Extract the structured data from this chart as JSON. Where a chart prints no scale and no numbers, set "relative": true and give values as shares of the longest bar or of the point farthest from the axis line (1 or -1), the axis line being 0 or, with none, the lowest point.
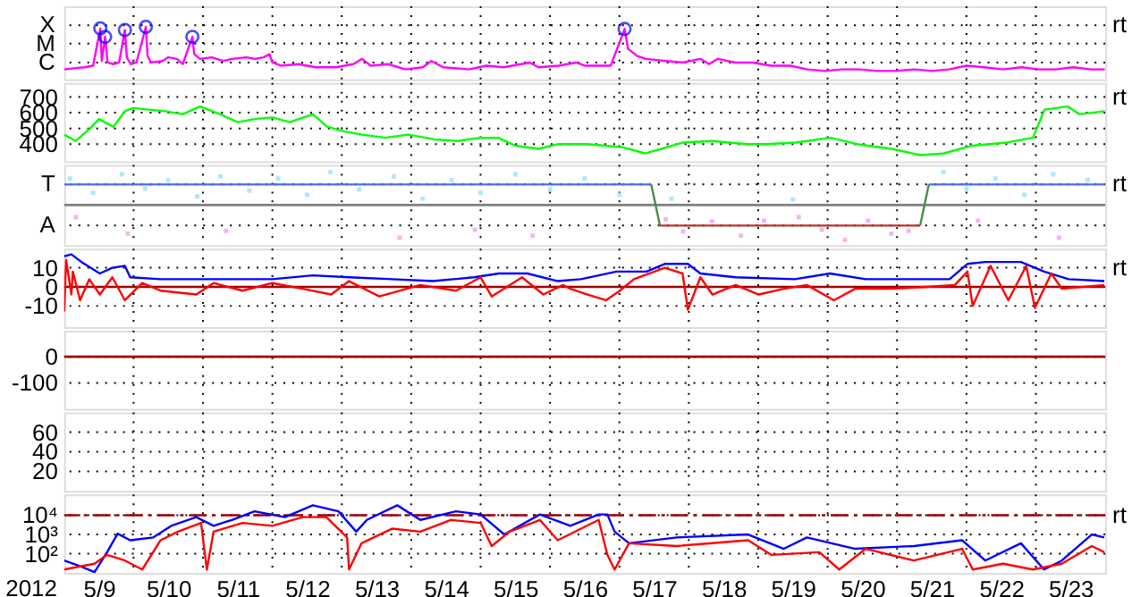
{
  "chart_data": [
    {
      "type": "line",
      "relative": true,
      "xlim": [
        "2012-05-09",
        "2012-05-24"
      ],
      "tick_labels": "y",
      "grid": true,
      "annotations": [
        "rt",
        "X",
        "M",
        "C"
      ],
      "xticks": [
        {
          "value": "2012-05-10",
          "label": null
        },
        {
          "value": "2012-05-11",
          "label": null
        },
        {
          "value": "2012-05-12",
          "label": null
        },
        {
          "value": "2012-05-13",
          "label": null
        },
        {
          "value": "2012-05-14",
          "label": null
        },
        {
          "value": "2012-05-15",
          "label": null
        },
        {
          "value": "2012-05-16",
          "label": null
        },
        {
          "value": "2012-05-17",
          "label": null
        },
        {
          "value": "2012-05-18",
          "label": null
        },
        {
          "value": "2012-05-19",
          "label": null
        },
        {
          "value": "2012-05-20",
          "label": null
        },
        {
          "value": "2012-05-21",
          "label": null
        },
        {
          "value": "2012-05-22",
          "label": null
        },
        {
          "value": "2012-05-23",
          "label": null
        }
      ],
      "series": [
        {
          "color": "#ff00ff",
          "x": [
            "2012-05-09T00:00",
            "2012-05-09T07:00",
            "2012-05-09T10:00",
            "2012-05-09T12:30",
            "2012-05-09T13:00",
            "2012-05-09T14:10",
            "2012-05-09T15:00",
            "2012-05-09T17:00",
            "2012-05-09T19:00",
            "2012-05-09T21:00",
            "2012-05-09T21:40",
            "2012-05-09T23:00",
            "2012-05-10T01:00",
            "2012-05-10T04:15",
            "2012-05-10T04:50",
            "2012-05-10T06:00",
            "2012-05-10T10:00",
            "2012-05-10T12:00",
            "2012-05-10T15:00",
            "2012-05-10T17:00",
            "2012-05-10T20:20",
            "2012-05-10T21:00",
            "2012-05-10T23:00",
            "2012-05-11T03:00",
            "2012-05-11T07:00",
            "2012-05-11T10:00",
            "2012-05-11T15:00",
            "2012-05-11T18:00",
            "2012-05-11T21:00",
            "2012-05-11T23:00",
            "2012-05-12T00:00",
            "2012-05-12T03:00",
            "2012-05-12T09:00",
            "2012-05-12T15:00",
            "2012-05-12T22:00",
            "2012-05-13T04:00",
            "2012-05-13T07:00",
            "2012-05-13T10:00",
            "2012-05-13T16:00",
            "2012-05-13T22:00",
            "2012-05-14T04:00",
            "2012-05-14T07:00",
            "2012-05-14T11:00",
            "2012-05-14T20:00",
            "2012-05-15T02:00",
            "2012-05-15T08:00",
            "2012-05-15T17:00",
            "2012-05-15T20:00",
            "2012-05-16T03:00",
            "2012-05-16T09:00",
            "2012-05-16T12:00",
            "2012-05-16T21:00",
            "2012-05-17T01:47",
            "2012-05-17T03:00",
            "2012-05-17T06:00",
            "2012-05-17T09:00",
            "2012-05-17T16:00",
            "2012-05-17T22:00",
            "2012-05-18T04:00",
            "2012-05-18T07:00",
            "2012-05-18T10:00",
            "2012-05-18T16:00",
            "2012-05-18T22:00",
            "2012-05-19T04:30",
            "2012-05-19T11:00",
            "2012-05-19T17:00",
            "2012-05-19T23:00",
            "2012-05-20T05:00",
            "2012-05-20T11:00",
            "2012-05-20T17:00",
            "2012-05-20T23:40",
            "2012-05-21T06:00",
            "2012-05-21T12:00",
            "2012-05-21T18:00",
            "2012-05-22T00:00",
            "2012-05-22T06:00",
            "2012-05-22T12:40",
            "2012-05-22T19:00",
            "2012-05-23T01:00",
            "2012-05-23T07:00",
            "2012-05-23T13:00",
            "2012-05-23T19:00",
            "2012-05-23T23:50"
          ],
          "values": [
            0.19,
            0.23,
            0.26,
            0.97,
            0.35,
            0.81,
            0.32,
            0.29,
            0.32,
            0.94,
            0.42,
            0.29,
            0.32,
            1,
            0.45,
            0.32,
            0.35,
            0.42,
            0.39,
            0.29,
            0.81,
            0.48,
            0.39,
            0.42,
            0.35,
            0.39,
            0.42,
            0.39,
            0.42,
            0.48,
            0.32,
            0.26,
            0.29,
            0.23,
            0.23,
            0.29,
            0.39,
            0.26,
            0.29,
            0.19,
            0.23,
            0.35,
            0.23,
            0.19,
            0.26,
            0.23,
            0.32,
            0.23,
            0.26,
            0.32,
            0.26,
            0.26,
            0.96,
            0.58,
            0.45,
            0.39,
            0.35,
            0.32,
            0.39,
            0.29,
            0.39,
            0.32,
            0.32,
            0.26,
            0.26,
            0.19,
            0.16,
            0.19,
            0.19,
            0.16,
            0.16,
            0.19,
            0.16,
            0.19,
            0.26,
            0.23,
            0.19,
            0.23,
            0.19,
            0.19,
            0.23,
            0.19,
            0.19
          ]
        },
        {
          "type": "scatter",
          "marker": "circle",
          "color": "#0000ff",
          "x": [
            "2012-05-09T12:30",
            "2012-05-09T14:10",
            "2012-05-09T21:00",
            "2012-05-10T04:15",
            "2012-05-10T20:20",
            "2012-05-17T01:47"
          ],
          "values": [
            0.97,
            0.81,
            0.94,
            1,
            0.81,
            0.96
          ]
        }
      ]
    },
    {
      "type": "line",
      "xlim": [
        "2012-05-09",
        "2012-05-24"
      ],
      "ylim": [
        290,
        790
      ],
      "tick_labels": "y",
      "grid": true,
      "annotations": [
        "rt"
      ],
      "xticks": [
        {
          "value": "2012-05-10",
          "label": null
        },
        {
          "value": "2012-05-11",
          "label": null
        },
        {
          "value": "2012-05-12",
          "label": null
        },
        {
          "value": "2012-05-13",
          "label": null
        },
        {
          "value": "2012-05-14",
          "label": null
        },
        {
          "value": "2012-05-15",
          "label": null
        },
        {
          "value": "2012-05-16",
          "label": null
        },
        {
          "value": "2012-05-17",
          "label": null
        },
        {
          "value": "2012-05-18",
          "label": null
        },
        {
          "value": "2012-05-19",
          "label": null
        },
        {
          "value": "2012-05-20",
          "label": null
        },
        {
          "value": "2012-05-21",
          "label": null
        },
        {
          "value": "2012-05-22",
          "label": null
        },
        {
          "value": "2012-05-23",
          "label": null
        }
      ],
      "yticks": [
        700,
        600,
        500,
        400
      ],
      "series": [
        {
          "color": "#00ff00",
          "x": [
            "2012-05-09T00:00",
            "2012-05-09T04:00",
            "2012-05-09T09:00",
            "2012-05-09T12:00",
            "2012-05-09T17:00",
            "2012-05-09T21:00",
            "2012-05-10T00:00",
            "2012-05-10T05:00",
            "2012-05-10T11:00",
            "2012-05-10T17:00",
            "2012-05-10T23:00",
            "2012-05-11T06:00",
            "2012-05-11T12:00",
            "2012-05-11T18:00",
            "2012-05-12T00:00",
            "2012-05-12T06:00",
            "2012-05-12T14:00",
            "2012-05-12T19:00",
            "2012-05-13T01:00",
            "2012-05-13T07:00",
            "2012-05-13T15:00",
            "2012-05-13T23:00",
            "2012-05-14T08:00",
            "2012-05-14T16:00",
            "2012-05-15T00:00",
            "2012-05-15T06:00",
            "2012-05-15T12:00",
            "2012-05-15T20:00",
            "2012-05-16T03:00",
            "2012-05-16T13:00",
            "2012-05-17T01:00",
            "2012-05-17T09:00",
            "2012-05-17T22:00",
            "2012-05-18T08:00",
            "2012-05-18T20:00",
            "2012-05-19T03:00",
            "2012-05-19T13:00",
            "2012-05-20T01:00",
            "2012-05-20T10:00",
            "2012-05-20T22:00",
            "2012-05-21T08:00",
            "2012-05-21T16:00",
            "2012-05-22T02:00",
            "2012-05-22T14:00",
            "2012-05-22T23:00",
            "2012-05-23T03:00",
            "2012-05-23T11:00",
            "2012-05-23T15:00",
            "2012-05-23T23:50"
          ],
          "values": [
            460,
            420,
            500,
            560,
            510,
            610,
            630,
            620,
            610,
            590,
            640,
            590,
            540,
            560,
            570,
            540,
            590,
            510,
            480,
            460,
            440,
            460,
            430,
            420,
            440,
            440,
            390,
            370,
            400,
            400,
            380,
            340,
            410,
            420,
            400,
            400,
            410,
            440,
            400,
            370,
            330,
            340,
            390,
            410,
            440,
            620,
            640,
            590,
            610
          ]
        }
      ]
    },
    {
      "type": "line",
      "relative": true,
      "xlim": [
        "2012-05-09",
        "2012-05-24"
      ],
      "tick_labels": "y",
      "grid": true,
      "annotations": [
        "rt",
        "T",
        "A"
      ],
      "xticks": [
        {
          "value": "2012-05-10",
          "label": null
        },
        {
          "value": "2012-05-11",
          "label": null
        },
        {
          "value": "2012-05-12",
          "label": null
        },
        {
          "value": "2012-05-13",
          "label": null
        },
        {
          "value": "2012-05-14",
          "label": null
        },
        {
          "value": "2012-05-15",
          "label": null
        },
        {
          "value": "2012-05-16",
          "label": null
        },
        {
          "value": "2012-05-17",
          "label": null
        },
        {
          "value": "2012-05-18",
          "label": null
        },
        {
          "value": "2012-05-19",
          "label": null
        },
        {
          "value": "2012-05-20",
          "label": null
        },
        {
          "value": "2012-05-21",
          "label": null
        },
        {
          "value": "2012-05-22",
          "label": null
        },
        {
          "value": "2012-05-23",
          "label": null
        }
      ],
      "ref_lines": [
        {
          "axis": "y",
          "value": 0,
          "color": "#808080"
        }
      ],
      "series": [
        {
          "type": "scatter",
          "marker": "square",
          "color": "#aee6ff",
          "x": [
            "2012-05-09T02:00",
            "2012-05-09T10:00",
            "2012-05-09T20:00",
            "2012-05-10T04:00",
            "2012-05-10T12:00",
            "2012-05-10T22:00",
            "2012-05-11T06:00",
            "2012-05-11T16:00",
            "2012-05-12T02:00",
            "2012-05-12T12:00",
            "2012-05-12T20:00",
            "2012-05-13T06:00",
            "2012-05-13T18:00",
            "2012-05-14T04:00",
            "2012-05-14T14:00",
            "2012-05-15T00:00",
            "2012-05-15T12:00",
            "2012-05-16T00:00",
            "2012-05-16T12:00",
            "2012-05-17T00:00",
            "2012-05-17T18:00",
            "2012-05-19T12:00",
            "2012-05-21T16:00",
            "2012-05-22T00:00",
            "2012-05-22T10:00",
            "2012-05-22T20:00",
            "2012-05-23T06:00",
            "2012-05-23T18:00"
          ],
          "values": [
            0.76,
            0.35,
            0.88,
            0.47,
            0.71,
            0.24,
            0.82,
            0.41,
            0.76,
            0.29,
            0.94,
            0.45,
            0.82,
            0.18,
            0.71,
            0.35,
            0.88,
            0.45,
            0.76,
            0.29,
            0.18,
            0.16,
            0.94,
            0.47,
            0.76,
            0.29,
            0.88,
            0.72
          ]
        },
        {
          "type": "scatter",
          "marker": "square",
          "color": "#f4b4f0",
          "x": [
            "2012-05-09T04:00",
            "2012-05-09T22:00",
            "2012-05-11T08:00",
            "2012-05-13T20:00",
            "2012-05-14T22:00",
            "2012-05-15T18:00",
            "2012-05-17T16:00",
            "2012-05-17T22:00",
            "2012-05-18T08:00",
            "2012-05-18T18:00",
            "2012-05-19T02:00",
            "2012-05-19T14:00",
            "2012-05-19T22:00",
            "2012-05-20T06:00",
            "2012-05-20T14:00",
            "2012-05-20T22:00",
            "2012-05-21T04:00",
            "2012-05-22T04:00",
            "2012-05-23T08:00"
          ],
          "values": [
            -0.35,
            -0.82,
            -0.74,
            -0.94,
            -0.71,
            -0.88,
            -0.41,
            -0.76,
            -0.47,
            -0.88,
            -0.45,
            -0.35,
            -0.71,
            -1,
            -0.45,
            -0.82,
            -0.74,
            -0.45,
            -0.94
          ]
        },
        {
          "color": "#4a6cf0",
          "x": [
            "2012-05-09T00:00",
            "2012-05-17T11:00",
            "2012-05-17T12:00",
            "2012-05-21T11:00",
            "2012-05-23T23:50"
          ],
          "values": [
            0.59,
            0.59,
            null,
            0.59,
            0.59
          ]
        },
        {
          "color": "#4a8a4a",
          "x": [
            "2012-05-17T11:00",
            "2012-05-17T14:00",
            "2012-05-19T00:00",
            "2012-05-21T08:00",
            "2012-05-21T11:00"
          ],
          "values": [
            0.59,
            -0.59,
            null,
            -0.59,
            0.59
          ]
        },
        {
          "color": "#c03030",
          "x": [
            "2012-05-17T14:00",
            "2012-05-21T08:00"
          ],
          "values": [
            -0.59,
            -0.59
          ]
        }
      ]
    },
    {
      "type": "line",
      "xlim": [
        "2012-05-09",
        "2012-05-24"
      ],
      "ylim": [
        -21,
        20
      ],
      "tick_labels": "y",
      "grid": true,
      "annotations": [
        "rt"
      ],
      "xticks": [
        {
          "value": "2012-05-10",
          "label": null
        },
        {
          "value": "2012-05-11",
          "label": null
        },
        {
          "value": "2012-05-12",
          "label": null
        },
        {
          "value": "2012-05-13",
          "label": null
        },
        {
          "value": "2012-05-14",
          "label": null
        },
        {
          "value": "2012-05-15",
          "label": null
        },
        {
          "value": "2012-05-16",
          "label": null
        },
        {
          "value": "2012-05-17",
          "label": null
        },
        {
          "value": "2012-05-18",
          "label": null
        },
        {
          "value": "2012-05-19",
          "label": null
        },
        {
          "value": "2012-05-20",
          "label": null
        },
        {
          "value": "2012-05-21",
          "label": null
        },
        {
          "value": "2012-05-22",
          "label": null
        },
        {
          "value": "2012-05-23",
          "label": null
        }
      ],
      "yticks": [
        10,
        0,
        -10
      ],
      "ref_lines": [
        {
          "axis": "y",
          "value": 0,
          "color": "#a00000"
        }
      ],
      "series": [
        {
          "color": "#0000ff",
          "x": [
            "2012-05-09T00:00",
            "2012-05-09T02:30",
            "2012-05-09T06:00",
            "2012-05-09T12:20",
            "2012-05-09T16:40",
            "2012-05-09T21:00",
            "2012-05-09T22:50",
            "2012-05-10T09:20",
            "2012-05-10T21:40",
            "2012-05-11T10:00",
            "2012-05-12T00:00",
            "2012-05-12T14:00",
            "2012-05-13T02:30",
            "2012-05-13T17:20",
            "2012-05-14T07:30",
            "2012-05-14T21:40",
            "2012-05-15T06:20",
            "2012-05-15T16:10",
            "2012-05-16T02:40",
            "2012-05-16T10:40",
            "2012-05-16T23:00",
            "2012-05-17T09:20",
            "2012-05-17T15:40",
            "2012-05-17T23:40",
            "2012-05-18T04:00",
            "2012-05-18T16:10",
            "2012-05-19T12:40",
            "2012-05-20T00:50",
            "2012-05-20T13:10",
            "2012-05-21T01:30",
            "2012-05-21T18:10",
            "2012-05-22T00:20",
            "2012-05-22T06:30",
            "2012-05-22T18:50",
            "2012-05-23T02:50",
            "2012-05-23T11:20",
            "2012-05-23T23:40"
          ],
          "values": [
            16,
            17,
            13,
            7,
            10,
            11,
            5,
            4,
            4,
            4,
            4,
            6,
            5,
            4,
            3,
            5,
            7,
            7,
            3,
            4,
            8,
            8,
            12,
            12,
            7,
            5,
            4,
            7,
            4,
            4,
            4,
            12,
            13,
            13,
            8,
            4,
            3
          ]
        },
        {
          "color": "#ff0000",
          "x": [
            "2012-05-09T00:00",
            "2012-05-09T00:40",
            "2012-05-09T02:30",
            "2012-05-09T03:00",
            "2012-05-09T05:30",
            "2012-05-09T08:40",
            "2012-05-09T12:20",
            "2012-05-09T16:40",
            "2012-05-09T21:00",
            "2012-05-10T03:00",
            "2012-05-10T09:20",
            "2012-05-10T21:40",
            "2012-05-11T03:40",
            "2012-05-11T13:40",
            "2012-05-12T00:00",
            "2012-05-12T10:30",
            "2012-05-12T20:20",
            "2012-05-13T02:30",
            "2012-05-13T13:00",
            "2012-05-14T03:10",
            "2012-05-14T15:30",
            "2012-05-15T00:00",
            "2012-05-15T03:50",
            "2012-05-15T14:20",
            "2012-05-15T21:40",
            "2012-05-16T04:30",
            "2012-05-16T07:00",
            "2012-05-16T13:00",
            "2012-05-16T19:20",
            "2012-05-17T00:10",
            "2012-05-17T05:00",
            "2012-05-17T15:40",
            "2012-05-17T21:50",
            "2012-05-17T23:40",
            "2012-05-18T04:00",
            "2012-05-18T08:10",
            "2012-05-18T16:10",
            "2012-05-19T00:10",
            "2012-05-19T08:50",
            "2012-05-19T16:50",
            "2012-05-20T02:10",
            "2012-05-20T09:30",
            "2012-05-20T21:50",
            "2012-05-21T10:10",
            "2012-05-21T20:00",
            "2012-05-22T00:20",
            "2012-05-22T02:10",
            "2012-05-22T08:20",
            "2012-05-22T14:30",
            "2012-05-22T20:40",
            "2012-05-22T23:40",
            "2012-05-23T05:20",
            "2012-05-23T09:00",
            "2012-05-23T23:40"
          ],
          "values": [
            -13,
            14,
            -4,
            8,
            -7,
            4,
            -4,
            5,
            -7,
            2,
            -2,
            -4,
            2,
            -2,
            2,
            -1,
            -4,
            3,
            -5,
            1,
            -2,
            5,
            -5,
            5,
            -4,
            1,
            -1,
            -4,
            -7,
            -2,
            4,
            10,
            7,
            -12,
            5,
            -4,
            1,
            -4,
            -1,
            1,
            -7,
            -1,
            -1,
            0,
            1,
            8,
            -10,
            11,
            -7,
            11,
            -11,
            7,
            -1,
            1
          ]
        }
      ]
    },
    {
      "type": "line",
      "xlim": [
        "2012-05-09",
        "2012-05-24"
      ],
      "ylim": [
        -200,
        100
      ],
      "tick_labels": "y",
      "grid": true,
      "xticks": [
        {
          "value": "2012-05-10",
          "label": null
        },
        {
          "value": "2012-05-11",
          "label": null
        },
        {
          "value": "2012-05-12",
          "label": null
        },
        {
          "value": "2012-05-13",
          "label": null
        },
        {
          "value": "2012-05-14",
          "label": null
        },
        {
          "value": "2012-05-15",
          "label": null
        },
        {
          "value": "2012-05-16",
          "label": null
        },
        {
          "value": "2012-05-17",
          "label": null
        },
        {
          "value": "2012-05-18",
          "label": null
        },
        {
          "value": "2012-05-19",
          "label": null
        },
        {
          "value": "2012-05-20",
          "label": null
        },
        {
          "value": "2012-05-21",
          "label": null
        },
        {
          "value": "2012-05-22",
          "label": null
        },
        {
          "value": "2012-05-23",
          "label": null
        }
      ],
      "yticks": [
        0,
        -100
      ],
      "ref_lines": [
        {
          "axis": "y",
          "value": 0,
          "color": "#a00000"
        }
      ]
    },
    {
      "type": "line",
      "xlim": [
        "2012-05-09",
        "2012-05-24"
      ],
      "ylim": [
        0,
        80
      ],
      "tick_labels": "y",
      "grid": true,
      "xticks": [
        {
          "value": "2012-05-10",
          "label": null
        },
        {
          "value": "2012-05-11",
          "label": null
        },
        {
          "value": "2012-05-12",
          "label": null
        },
        {
          "value": "2012-05-13",
          "label": null
        },
        {
          "value": "2012-05-14",
          "label": null
        },
        {
          "value": "2012-05-15",
          "label": null
        },
        {
          "value": "2012-05-16",
          "label": null
        },
        {
          "value": "2012-05-17",
          "label": null
        },
        {
          "value": "2012-05-18",
          "label": null
        },
        {
          "value": "2012-05-19",
          "label": null
        },
        {
          "value": "2012-05-20",
          "label": null
        },
        {
          "value": "2012-05-21",
          "label": null
        },
        {
          "value": "2012-05-22",
          "label": null
        },
        {
          "value": "2012-05-23",
          "label": null
        }
      ],
      "yticks": [
        60,
        40,
        20
      ]
    },
    {
      "type": "line",
      "log": "y",
      "xlabel": "2012",
      "xlim": [
        "2012-05-09",
        "2012-05-24"
      ],
      "ylim": [
        10,
        120000
      ],
      "grid": true,
      "annotations": [
        "rt"
      ],
      "xticks": [
        {
          "value": "2012-05-09T12:00",
          "label": "5/9"
        },
        {
          "value": "2012-05-10",
          "label": null
        },
        {
          "value": "2012-05-10T12:00",
          "label": "5/10"
        },
        {
          "value": "2012-05-11",
          "label": null
        },
        {
          "value": "2012-05-11T12:00",
          "label": "5/11"
        },
        {
          "value": "2012-05-12",
          "label": null
        },
        {
          "value": "2012-05-12T12:00",
          "label": "5/12"
        },
        {
          "value": "2012-05-13",
          "label": null
        },
        {
          "value": "2012-05-13T12:00",
          "label": "5/13"
        },
        {
          "value": "2012-05-14",
          "label": null
        },
        {
          "value": "2012-05-14T12:00",
          "label": "5/14"
        },
        {
          "value": "2012-05-15",
          "label": null
        },
        {
          "value": "2012-05-15T12:00",
          "label": "5/15"
        },
        {
          "value": "2012-05-16",
          "label": null
        },
        {
          "value": "2012-05-16T12:00",
          "label": "5/16"
        },
        {
          "value": "2012-05-17",
          "label": null
        },
        {
          "value": "2012-05-17T12:00",
          "label": "5/17"
        },
        {
          "value": "2012-05-18",
          "label": null
        },
        {
          "value": "2012-05-18T12:00",
          "label": "5/18"
        },
        {
          "value": "2012-05-19",
          "label": null
        },
        {
          "value": "2012-05-19T12:00",
          "label": "5/19"
        },
        {
          "value": "2012-05-20",
          "label": null
        },
        {
          "value": "2012-05-20T12:00",
          "label": "5/20"
        },
        {
          "value": "2012-05-21",
          "label": null
        },
        {
          "value": "2012-05-21T12:00",
          "label": "5/21"
        },
        {
          "value": "2012-05-22",
          "label": null
        },
        {
          "value": "2012-05-22T12:00",
          "label": "5/22"
        },
        {
          "value": "2012-05-23",
          "label": null
        },
        {
          "value": "2012-05-23T12:00",
          "label": "5/23"
        }
      ],
      "yticks": [
        {
          "value": 10000,
          "label": "10⁴"
        },
        {
          "value": 1000,
          "label": "10³"
        },
        {
          "value": 100,
          "label": "10²"
        }
      ],
      "ref_lines": [
        {
          "axis": "y",
          "value": 10000,
          "color": "#a00000",
          "line_style": "dashed"
        }
      ],
      "series": [
        {
          "color": "#0000ff",
          "x": [
            "2012-05-09T00:00",
            "2012-05-09T06:00",
            "2012-05-09T10:30",
            "2012-05-09T14:50",
            "2012-05-09T18:30",
            "2012-05-09T22:50",
            "2012-05-10T06:50",
            "2012-05-10T13:00",
            "2012-05-10T21:40",
            "2012-05-11T03:40",
            "2012-05-11T10:00",
            "2012-05-11T17:50",
            "2012-05-12T04:20",
            "2012-05-12T14:00",
            "2012-05-12T22:50",
            "2012-05-13T05:00",
            "2012-05-13T08:40",
            "2012-05-13T19:10",
            "2012-05-14T03:10",
            "2012-05-14T15:30",
            "2012-05-15T00:00",
            "2012-05-15T08:10",
            "2012-05-15T20:30",
            "2012-05-16T07:00",
            "2012-05-16T16:50",
            "2012-05-16T19:50",
            "2012-05-16T22:20",
            "2012-05-17T03:20",
            "2012-05-17T19:50",
            "2012-05-18T20:30",
            "2012-05-19T08:50",
            "2012-05-19T16:50",
            "2012-05-20T09:30",
            "2012-05-21T05:50",
            "2012-05-21T22:30",
            "2012-05-22T06:30",
            "2012-05-22T18:50",
            "2012-05-23T02:50",
            "2012-05-23T09:00",
            "2012-05-23T19:20",
            "2012-05-23T23:40"
          ],
          "values": [
            44,
            21,
            11,
            120,
            1100,
            500,
            700,
            2800,
            8000,
            2800,
            5700,
            16000,
            8000,
            33000,
            16000,
            1400,
            5700,
            33000,
            5700,
            16000,
            11000,
            1000,
            11000,
            2800,
            11000,
            11000,
            1400,
            350,
            700,
            1000,
            180,
            700,
            180,
            250,
            500,
            44,
            350,
            15,
            44,
            1000,
            700
          ]
        },
        {
          "color": "#ff0000",
          "x": [
            "2012-05-09T00:00",
            "2012-05-09T10:30",
            "2012-05-09T14:50",
            "2012-05-09T21:00",
            "2012-05-10T03:00",
            "2012-05-10T09:20",
            "2012-05-10T15:20",
            "2012-05-10T23:20",
            "2012-05-11T01:20",
            "2012-05-11T03:40",
            "2012-05-11T13:40",
            "2012-05-12T00:00",
            "2012-05-12T10:30",
            "2012-05-12T18:40",
            "2012-05-13T01:50",
            "2012-05-13T02:30",
            "2012-05-13T06:50",
            "2012-05-13T17:20",
            "2012-05-14T03:10",
            "2012-05-14T13:40",
            "2012-05-15T00:00",
            "2012-05-15T03:50",
            "2012-05-15T10:00",
            "2012-05-15T20:30",
            "2012-05-16T02:40",
            "2012-05-16T16:50",
            "2012-05-16T19:50",
            "2012-05-16T22:20",
            "2012-05-17T03:20",
            "2012-05-17T19:50",
            "2012-05-18T20:30",
            "2012-05-19T04:30",
            "2012-05-19T21:10",
            "2012-05-20T04:00",
            "2012-05-20T13:10",
            "2012-05-21T05:50",
            "2012-05-21T22:30",
            "2012-05-22T02:10",
            "2012-05-22T12:40",
            "2012-05-22T23:00",
            "2012-05-23T09:00",
            "2012-05-23T19:20",
            "2012-05-23T23:40"
          ],
          "values": [
            15,
            30,
            87,
            44,
            15,
            500,
            1400,
            4000,
            15,
            1400,
            4000,
            2800,
            8000,
            8000,
            700,
            15,
            350,
            2000,
            1400,
            5700,
            4000,
            250,
            1400,
            5700,
            500,
            5700,
            87,
            15,
            350,
            250,
            500,
            87,
            120,
            15,
            180,
            44,
            180,
            15,
            30,
            15,
            30,
            250,
            120
          ]
        }
      ]
    }
  ]
}
